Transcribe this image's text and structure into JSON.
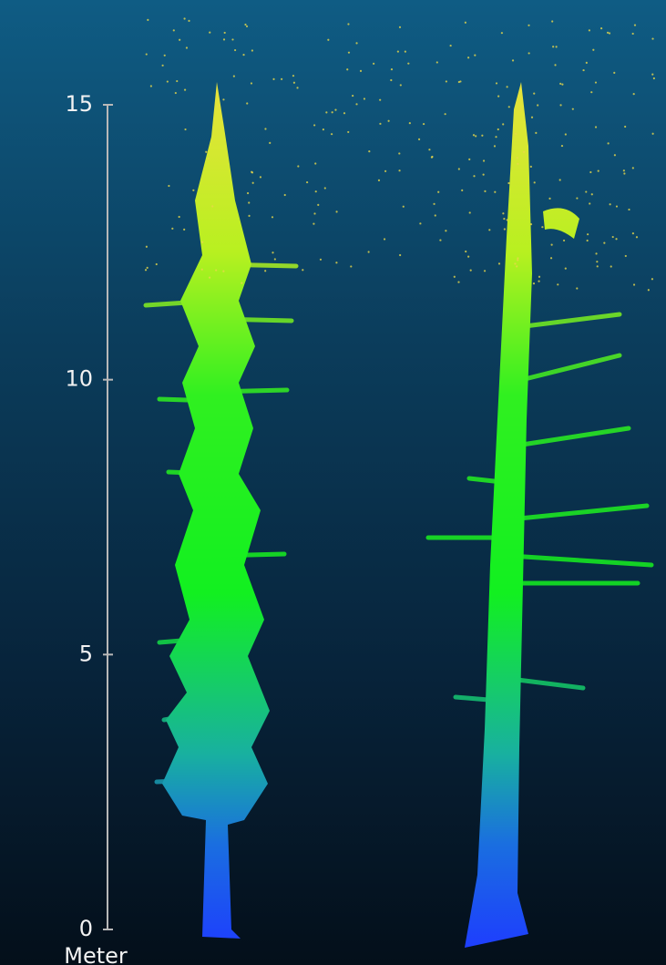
{
  "scale": {
    "ticks": [
      0,
      5,
      10,
      15
    ],
    "label": "Meter"
  }
}
